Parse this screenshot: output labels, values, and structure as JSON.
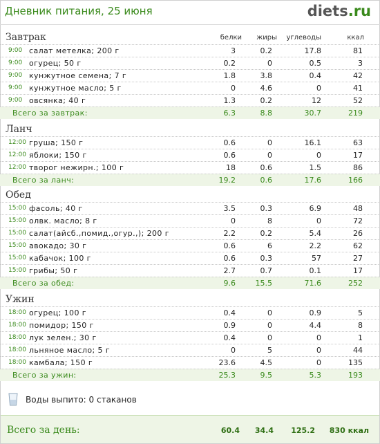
{
  "header": {
    "title": "Дневник питания, 25 июня",
    "logo_brand": "diets",
    "logo_dot": ".",
    "logo_tld": "ru"
  },
  "columns": {
    "protein": "белки",
    "fat": "жиры",
    "carbs": "углеводы",
    "kcal": "ккал"
  },
  "meals": [
    {
      "title": "Завтрак",
      "rows": [
        {
          "time": "9:00",
          "food": "салат метелка; 200 г",
          "p": "3",
          "f": "0.2",
          "c": "17.8",
          "k": "81"
        },
        {
          "time": "9:00",
          "food": "огурец; 50 г",
          "p": "0.2",
          "f": "0",
          "c": "0.5",
          "k": "3"
        },
        {
          "time": "9:00",
          "food": "кунжутное семена; 7 г",
          "p": "1.8",
          "f": "3.8",
          "c": "0.4",
          "k": "42"
        },
        {
          "time": "9:00",
          "food": "кунжутное масло; 5 г",
          "p": "0",
          "f": "4.6",
          "c": "0",
          "k": "41"
        },
        {
          "time": "9:00",
          "food": "овсянка; 40 г",
          "p": "1.3",
          "f": "0.2",
          "c": "12",
          "k": "52"
        }
      ],
      "total": {
        "label": "Всего за завтрак:",
        "p": "6.3",
        "f": "8.8",
        "c": "30.7",
        "k": "219"
      }
    },
    {
      "title": "Ланч",
      "rows": [
        {
          "time": "12:00",
          "food": "груша; 150 г",
          "p": "0.6",
          "f": "0",
          "c": "16.1",
          "k": "63"
        },
        {
          "time": "12:00",
          "food": "яблоки; 150 г",
          "p": "0.6",
          "f": "0",
          "c": "0",
          "k": "17"
        },
        {
          "time": "12:00",
          "food": "творог нежирн.; 100 г",
          "p": "18",
          "f": "0.6",
          "c": "1.5",
          "k": "86"
        }
      ],
      "total": {
        "label": "Всего за ланч:",
        "p": "19.2",
        "f": "0.6",
        "c": "17.6",
        "k": "166"
      }
    },
    {
      "title": "Обед",
      "rows": [
        {
          "time": "15:00",
          "food": "фасоль; 40 г",
          "p": "3.5",
          "f": "0.3",
          "c": "6.9",
          "k": "48"
        },
        {
          "time": "15:00",
          "food": "олвк. масло; 8 г",
          "p": "0",
          "f": "8",
          "c": "0",
          "k": "72"
        },
        {
          "time": "15:00",
          "food": "салат(айсб.,помид.,огур.,); 200 г",
          "p": "2.2",
          "f": "0.2",
          "c": "5.4",
          "k": "26"
        },
        {
          "time": "15:00",
          "food": "авокадо; 30 г",
          "p": "0.6",
          "f": "6",
          "c": "2.2",
          "k": "62"
        },
        {
          "time": "15:00",
          "food": "кабачок; 100 г",
          "p": "0.6",
          "f": "0.3",
          "c": "57",
          "k": "27"
        },
        {
          "time": "15:00",
          "food": "грибы; 50 г",
          "p": "2.7",
          "f": "0.7",
          "c": "0.1",
          "k": "17"
        }
      ],
      "total": {
        "label": "Всего за обед:",
        "p": "9.6",
        "f": "15.5",
        "c": "71.6",
        "k": "252"
      }
    },
    {
      "title": "Ужин",
      "rows": [
        {
          "time": "18:00",
          "food": "огурец; 100 г",
          "p": "0.4",
          "f": "0",
          "c": "0.9",
          "k": "5"
        },
        {
          "time": "18:00",
          "food": "помидор; 150 г",
          "p": "0.9",
          "f": "0",
          "c": "4.4",
          "k": "8"
        },
        {
          "time": "18:00",
          "food": "лук зелен.; 30 г",
          "p": "0.4",
          "f": "0",
          "c": "0",
          "k": "1"
        },
        {
          "time": "18:00",
          "food": "льняное масло; 5 г",
          "p": "0",
          "f": "5",
          "c": "0",
          "k": "44"
        },
        {
          "time": "18:00",
          "food": "камбала; 150 г",
          "p": "23.6",
          "f": "4.5",
          "c": "0",
          "k": "135"
        }
      ],
      "total": {
        "label": "Всего за ужин:",
        "p": "25.3",
        "f": "9.5",
        "c": "5.3",
        "k": "193"
      }
    }
  ],
  "water": {
    "label": "Воды выпито: 0 стаканов",
    "icon": "glass-icon"
  },
  "day_total": {
    "label": "Всего за день:",
    "p": "60.4",
    "f": "34.4",
    "c": "125.2",
    "k": "830 ккал"
  },
  "colors": {
    "accent": "#3a8a1c",
    "total_bg": "#eef5e6"
  }
}
